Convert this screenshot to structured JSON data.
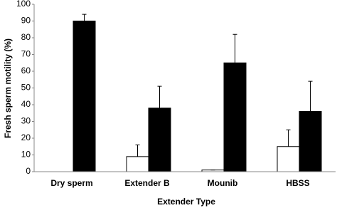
{
  "chart_data": {
    "type": "bar",
    "x_label": "Extender Type",
    "y_label": "Fresh sperm motility (%)",
    "categories": [
      "Dry sperm",
      "Extender B",
      "Mounib",
      "HBSS"
    ],
    "series": [
      {
        "color": "#ffffff",
        "values": [
          0,
          9,
          1,
          15
        ],
        "errors": [
          0,
          7,
          0,
          10
        ]
      },
      {
        "color": "#000000",
        "values": [
          90,
          38,
          65,
          36
        ],
        "errors": [
          4,
          13,
          17,
          18
        ]
      }
    ],
    "ylim": [
      0,
      100
    ],
    "yticks": [
      0,
      10,
      20,
      30,
      40,
      50,
      60,
      70,
      80,
      90,
      100
    ],
    "grid": false
  }
}
